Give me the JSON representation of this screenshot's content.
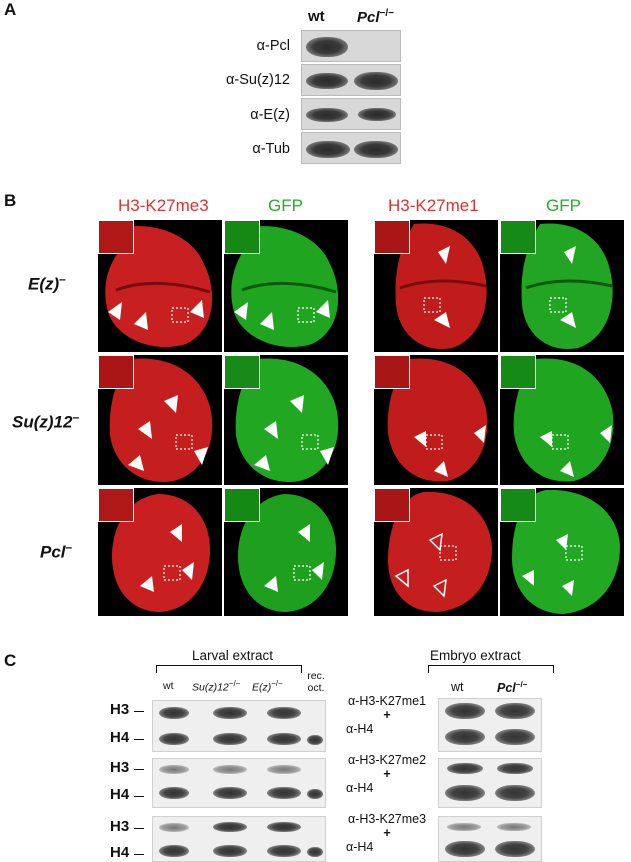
{
  "panel_a": {
    "letter": "A",
    "col_wt": "wt",
    "col_pcl": "Pcl",
    "col_pcl_sup": "−/−",
    "antibodies": [
      "α-Pcl",
      "α-Su(z)12",
      "α-E(z)",
      "α-Tub"
    ]
  },
  "panel_b": {
    "letter": "B",
    "group1": {
      "stain": "H3-K27me3",
      "reporter": "GFP"
    },
    "group2": {
      "stain": "H3-K27me1",
      "reporter": "GFP"
    },
    "rows": [
      {
        "label": "E(z)",
        "sup": "–"
      },
      {
        "label": "Su(z)12",
        "sup": "–"
      },
      {
        "label": "Pcl",
        "sup": "–"
      }
    ]
  },
  "panel_c": {
    "letter": "C",
    "larval_header": "Larval extract",
    "embryo_header": "Embryo extract",
    "larval_lanes": [
      "wt",
      "Su(z)12",
      "E(z)",
      "rec. oct."
    ],
    "larval_lane_sups": [
      "",
      "−/−",
      "−/−",
      ""
    ],
    "embryo_lanes": [
      "wt",
      "Pcl"
    ],
    "embryo_lane_sups": [
      "",
      "−/−"
    ],
    "histone_top": "H3",
    "histone_bottom": "H4",
    "blots": [
      {
        "ab_top": "α-H3-K27me1",
        "plus": "+",
        "ab_bottom": "α-H4"
      },
      {
        "ab_top": "α-H3-K27me2",
        "plus": "+",
        "ab_bottom": "α-H4"
      },
      {
        "ab_top": "α-H3-K27me3",
        "plus": "+",
        "ab_bottom": "α-H4"
      }
    ]
  }
}
